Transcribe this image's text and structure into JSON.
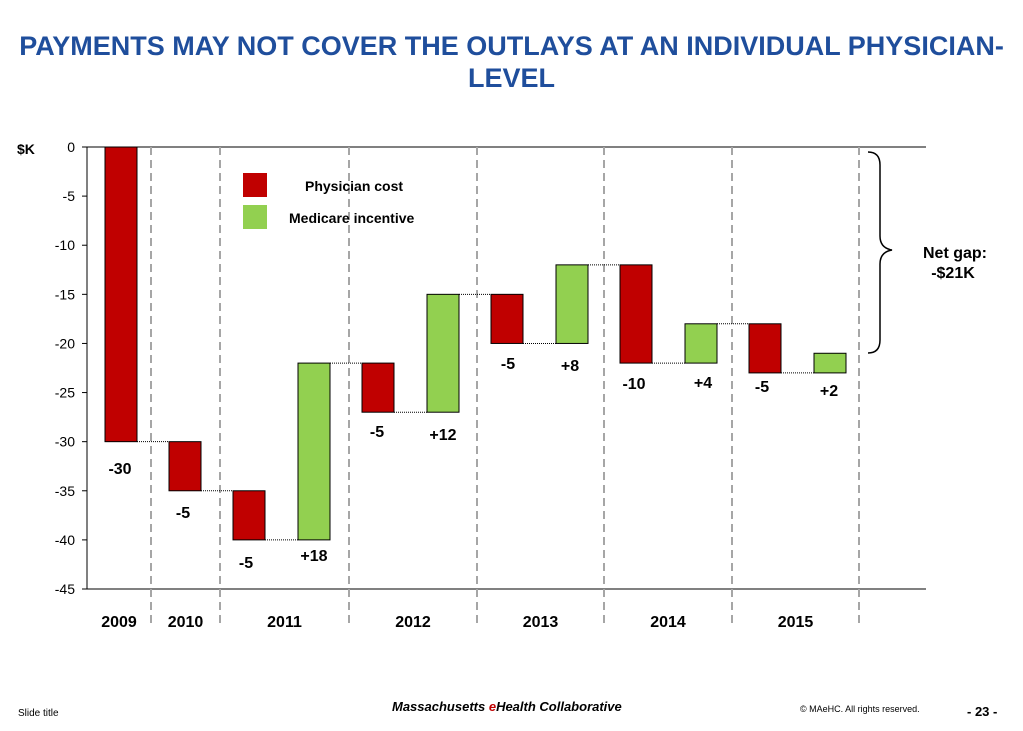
{
  "title": "PAYMENTS MAY NOT COVER THE OUTLAYS AT AN INDIVIDUAL PHYSICIAN-LEVEL",
  "colors": {
    "cost": "#C00000",
    "incentive": "#92D050",
    "title": "#1F4E9C"
  },
  "chart_data": {
    "type": "waterfall",
    "ylabel": "$K",
    "ylim": [
      -45,
      0
    ],
    "yticks": [
      "0",
      "-5",
      "-10",
      "-15",
      "-20",
      "-25",
      "-30",
      "-35",
      "-40",
      "-45"
    ],
    "ytick_values": [
      0,
      -5,
      -10,
      -15,
      -20,
      -25,
      -30,
      -35,
      -40,
      -45
    ],
    "year_labels": [
      "2009",
      "2010",
      "2011",
      "2012",
      "2013",
      "2014",
      "2015"
    ],
    "legend": {
      "cost": "Physician cost",
      "incentive": "Medicare incentive"
    },
    "bars": [
      {
        "year": "2009",
        "kind": "cost",
        "start": 0,
        "end": -30,
        "label": "-30"
      },
      {
        "year": "2010",
        "kind": "cost",
        "start": -30,
        "end": -35,
        "label": "-5"
      },
      {
        "year": "2011",
        "kind": "cost",
        "start": -35,
        "end": -40,
        "label": "-5"
      },
      {
        "year": "2011",
        "kind": "incentive",
        "start": -40,
        "end": -22,
        "label": "+18"
      },
      {
        "year": "2012",
        "kind": "cost",
        "start": -22,
        "end": -27,
        "label": "-5"
      },
      {
        "year": "2012",
        "kind": "incentive",
        "start": -27,
        "end": -15,
        "label": "+12"
      },
      {
        "year": "2013",
        "kind": "cost",
        "start": -15,
        "end": -20,
        "label": "-5"
      },
      {
        "year": "2013",
        "kind": "incentive",
        "start": -20,
        "end": -12,
        "label": "+8"
      },
      {
        "year": "2014",
        "kind": "cost",
        "start": -12,
        "end": -22,
        "label": "-10"
      },
      {
        "year": "2014",
        "kind": "incentive",
        "start": -22,
        "end": -18,
        "label": "+4"
      },
      {
        "year": "2015",
        "kind": "cost",
        "start": -18,
        "end": -23,
        "label": "-5"
      },
      {
        "year": "2015",
        "kind": "incentive",
        "start": -23,
        "end": -21,
        "label": "+2"
      }
    ],
    "net_gap": {
      "line1": "Net gap:",
      "line2": "-$21K"
    }
  },
  "footer": {
    "slide_title": "Slide title",
    "org_part1": "Massachusetts ",
    "org_accent": "e",
    "org_part2": "Health Collaborative",
    "copyright": "© MAeHC.  All rights reserved.",
    "page": "- 23 -"
  }
}
